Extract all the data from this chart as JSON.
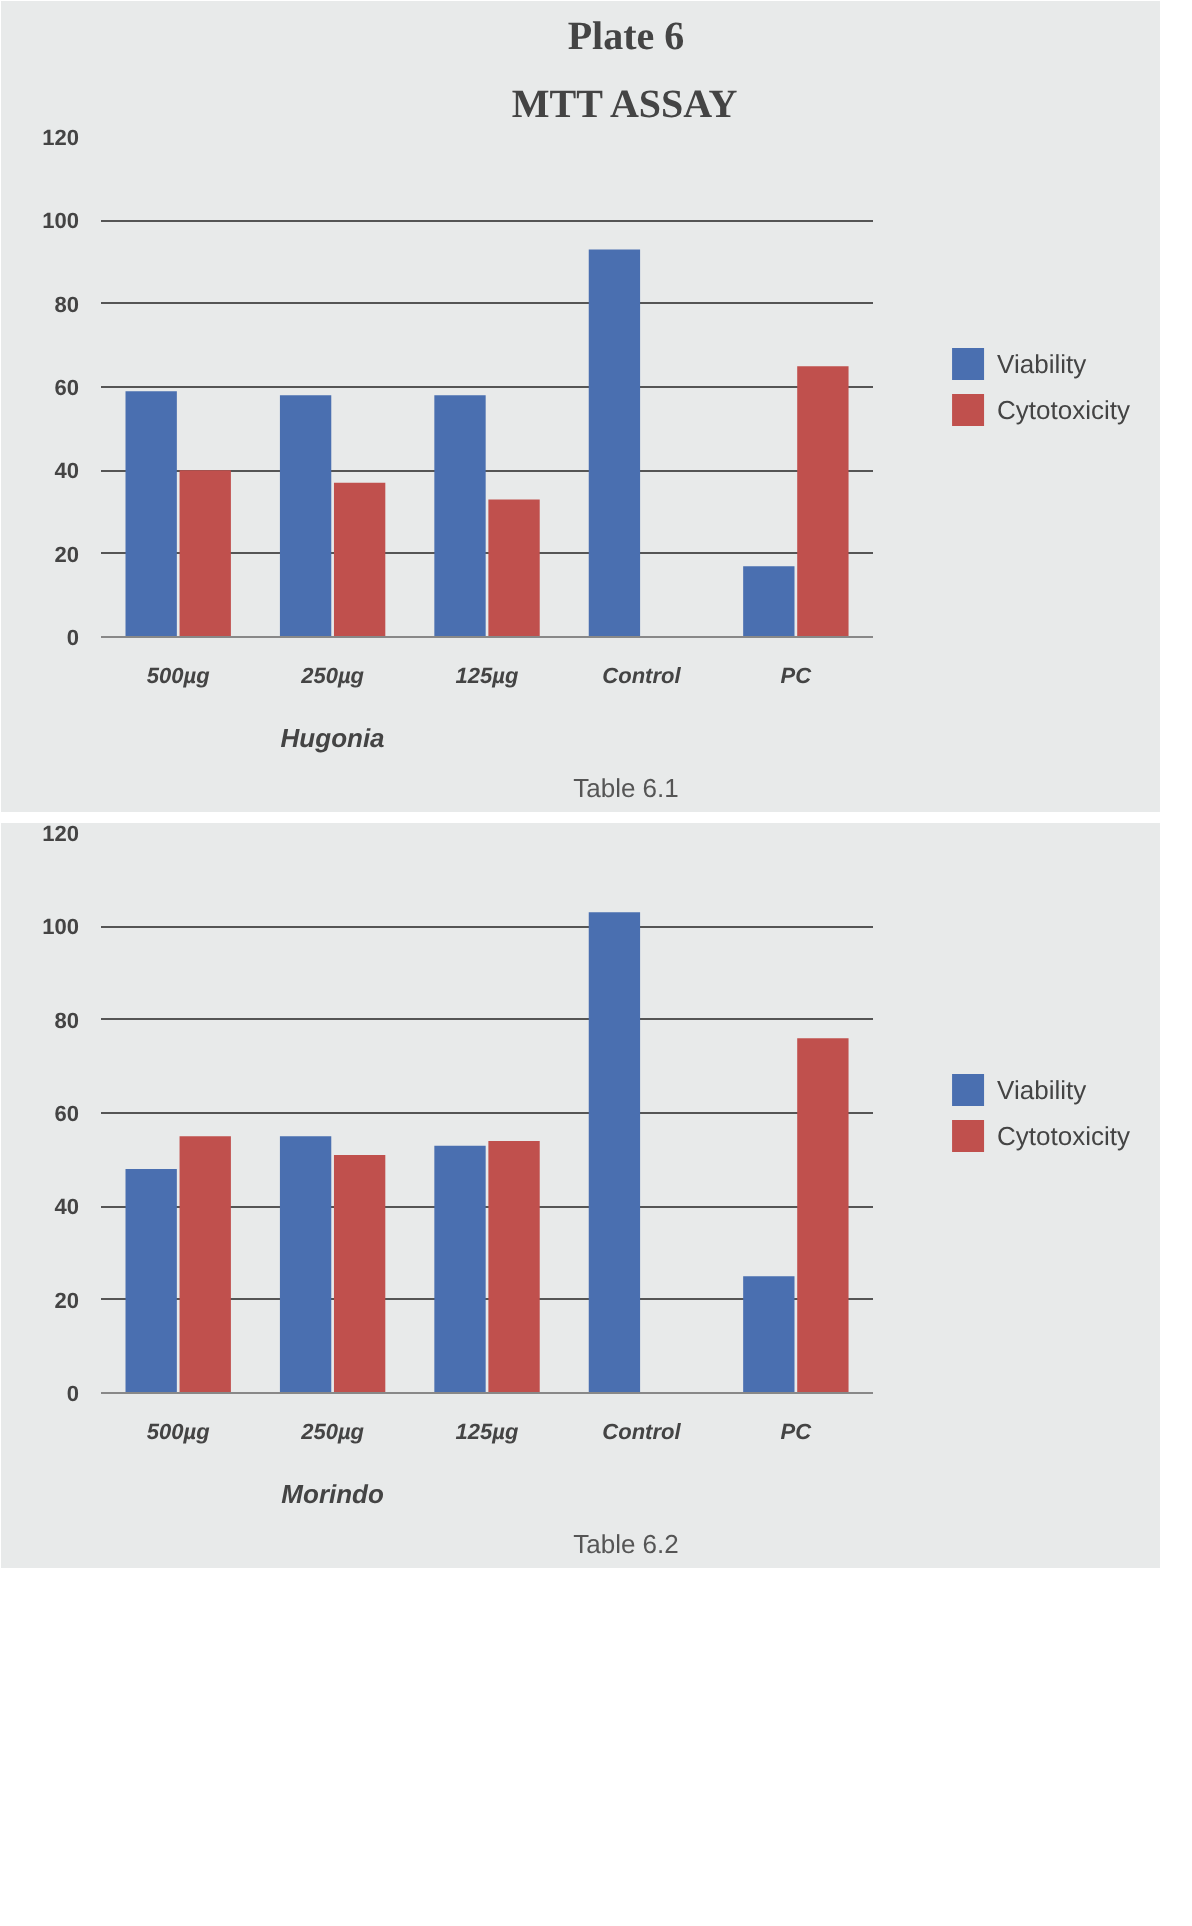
{
  "chart_data": [
    {
      "type": "bar",
      "title": "Plate 6",
      "subtitle": "MTT ASSAY",
      "categories": [
        "500µg",
        "250µg",
        "125µg",
        "Control",
        "PC"
      ],
      "series": [
        {
          "name": "Viability",
          "color": "#4a6fb0",
          "values": [
            59,
            58,
            58,
            93,
            17
          ]
        },
        {
          "name": "Cytotoxicity",
          "color": "#c0504d",
          "values": [
            40,
            37,
            33,
            null,
            65
          ]
        }
      ],
      "ylim": [
        0,
        120
      ],
      "yticks": [
        0,
        20,
        40,
        60,
        80,
        100,
        120
      ],
      "grid": "y",
      "legend": "right",
      "annotations": [
        "Hugonia",
        "Table 6.1"
      ]
    },
    {
      "type": "bar",
      "categories": [
        "500µg",
        "250µg",
        "125µg",
        "Control",
        "PC"
      ],
      "series": [
        {
          "name": "Viability",
          "color": "#4a6fb0",
          "values": [
            48,
            55,
            53,
            103,
            25
          ]
        },
        {
          "name": "Cytotoxicity",
          "color": "#c0504d",
          "values": [
            55,
            51,
            54,
            null,
            76
          ]
        }
      ],
      "ylim": [
        0,
        120
      ],
      "yticks": [
        0,
        20,
        40,
        60,
        80,
        100,
        120
      ],
      "grid": "y",
      "legend": "right",
      "annotations": [
        "Morindo",
        "Table 6.2"
      ]
    }
  ]
}
